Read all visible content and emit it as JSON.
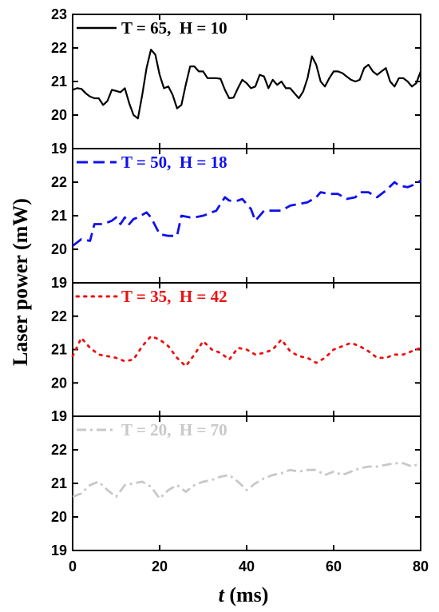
{
  "chart_data": {
    "type": "line",
    "xlabel_var": "t",
    "xlabel_unit": " (ms)",
    "ylabel": "Laser power (mW)",
    "xlim": [
      0,
      80
    ],
    "xticks": [
      "0",
      "20",
      "40",
      "60",
      "80"
    ],
    "shared_x": true,
    "grid": false,
    "panels": [
      {
        "legend": "T = 65,  H = 10",
        "color": "#000000",
        "style": "solid",
        "ylim": [
          19,
          23
        ],
        "yticks": [
          "19",
          "20",
          "21",
          "22",
          "23"
        ],
        "x": [
          0,
          1,
          2,
          3,
          4,
          5,
          6,
          7,
          8,
          9,
          10,
          11,
          12,
          13,
          14,
          15,
          16,
          17,
          18,
          19,
          20,
          21,
          22,
          23,
          24,
          25,
          26,
          27,
          28,
          29,
          30,
          31,
          32,
          33,
          34,
          35,
          36,
          37,
          38,
          39,
          40,
          41,
          42,
          43,
          44,
          45,
          46,
          47,
          48,
          49,
          50,
          51,
          52,
          53,
          54,
          55,
          56,
          57,
          58,
          59,
          60,
          61,
          62,
          63,
          64,
          65,
          66,
          67,
          68,
          69,
          70,
          71,
          72,
          73,
          74,
          75,
          76,
          77,
          78,
          79,
          80
        ],
        "y": [
          20.75,
          20.8,
          20.78,
          20.65,
          20.55,
          20.5,
          20.5,
          20.3,
          20.42,
          20.75,
          20.72,
          20.68,
          20.8,
          20.35,
          20.0,
          19.9,
          20.6,
          21.4,
          21.95,
          21.8,
          21.2,
          20.8,
          20.85,
          20.6,
          20.2,
          20.3,
          20.9,
          21.45,
          21.45,
          21.3,
          21.3,
          21.1,
          21.1,
          21.1,
          21.08,
          20.75,
          20.5,
          20.52,
          20.8,
          21.05,
          20.95,
          20.8,
          20.85,
          21.2,
          21.15,
          20.8,
          21.05,
          20.9,
          21.0,
          20.8,
          20.8,
          20.65,
          20.5,
          20.7,
          21.1,
          21.75,
          21.5,
          21.0,
          20.85,
          21.1,
          21.3,
          21.3,
          21.25,
          21.15,
          21.05,
          21.0,
          21.05,
          21.4,
          21.5,
          21.3,
          21.2,
          21.3,
          21.4,
          21.0,
          20.85,
          21.1,
          21.1,
          21.0,
          20.85,
          20.95,
          21.3
        ]
      },
      {
        "legend": "T = 50,  H = 18",
        "color": "#1010ee",
        "style": "dashed",
        "ylim": [
          19,
          23
        ],
        "yticks": [
          "19",
          "20",
          "21",
          "22",
          ""
        ],
        "x": [
          0,
          2,
          4,
          5,
          7,
          9,
          10,
          11,
          12,
          13,
          14,
          15,
          17,
          18,
          19,
          20,
          22,
          24,
          25,
          27,
          28,
          30,
          32,
          33,
          35,
          36,
          38,
          39,
          41,
          42,
          44,
          46,
          48,
          50,
          52,
          54,
          56,
          57,
          59,
          61,
          63,
          65,
          66,
          68,
          70,
          72,
          74,
          75,
          77,
          79,
          80
        ],
        "y": [
          20.1,
          20.3,
          20.25,
          20.75,
          20.75,
          20.85,
          20.95,
          20.75,
          20.95,
          20.75,
          20.9,
          20.95,
          21.1,
          20.95,
          20.7,
          20.45,
          20.4,
          20.4,
          21.0,
          20.95,
          20.95,
          21.0,
          21.1,
          21.15,
          21.55,
          21.45,
          21.45,
          21.5,
          21.2,
          20.85,
          21.15,
          21.15,
          21.15,
          21.3,
          21.35,
          21.4,
          21.55,
          21.7,
          21.65,
          21.65,
          21.5,
          21.55,
          21.7,
          21.7,
          21.55,
          21.75,
          22.0,
          21.9,
          21.85,
          21.95,
          22.05
        ]
      },
      {
        "legend": "T = 35,  H = 42",
        "color": "#ee1010",
        "style": "dotted",
        "ylim": [
          19,
          23
        ],
        "yticks": [
          "19",
          "20",
          "21",
          "22",
          ""
        ],
        "x": [
          0,
          2,
          4,
          6,
          8,
          10,
          12,
          14,
          16,
          18,
          20,
          22,
          24,
          26,
          28,
          30,
          32,
          34,
          36,
          38,
          40,
          42,
          44,
          46,
          48,
          50,
          52,
          54,
          56,
          58,
          60,
          62,
          64,
          66,
          68,
          70,
          72,
          74,
          76,
          78,
          80
        ],
        "y": [
          20.8,
          21.35,
          21.05,
          20.85,
          20.8,
          20.75,
          20.65,
          20.7,
          21.1,
          21.4,
          21.3,
          21.1,
          20.75,
          20.5,
          20.85,
          21.25,
          21.0,
          20.9,
          20.7,
          21.05,
          21.0,
          20.85,
          20.9,
          21.0,
          21.3,
          20.95,
          20.8,
          20.75,
          20.6,
          20.75,
          21.0,
          21.1,
          21.2,
          21.1,
          20.95,
          20.75,
          20.75,
          20.85,
          20.85,
          20.95,
          21.05
        ]
      },
      {
        "legend": "T = 20,  H = 70",
        "color": "#c8c8c8",
        "style": "dashdot",
        "ylim": [
          19,
          23
        ],
        "yticks": [
          "19",
          "20",
          "21",
          "22",
          ""
        ],
        "x": [
          0,
          2,
          4,
          6,
          8,
          10,
          12,
          14,
          16,
          18,
          20,
          22,
          24,
          26,
          28,
          30,
          32,
          34,
          36,
          38,
          40,
          42,
          44,
          46,
          48,
          50,
          52,
          54,
          56,
          58,
          60,
          62,
          64,
          66,
          68,
          70,
          72,
          74,
          76,
          78,
          80
        ],
        "y": [
          20.6,
          20.7,
          20.95,
          21.05,
          20.8,
          20.6,
          20.95,
          21.0,
          21.05,
          20.9,
          20.55,
          20.8,
          20.95,
          20.75,
          20.95,
          21.05,
          21.1,
          21.2,
          21.25,
          21.05,
          20.8,
          21.0,
          21.15,
          21.25,
          21.3,
          21.4,
          21.35,
          21.4,
          21.4,
          21.25,
          21.35,
          21.25,
          21.35,
          21.45,
          21.5,
          21.5,
          21.55,
          21.6,
          21.6,
          21.5,
          21.6
        ]
      }
    ]
  }
}
